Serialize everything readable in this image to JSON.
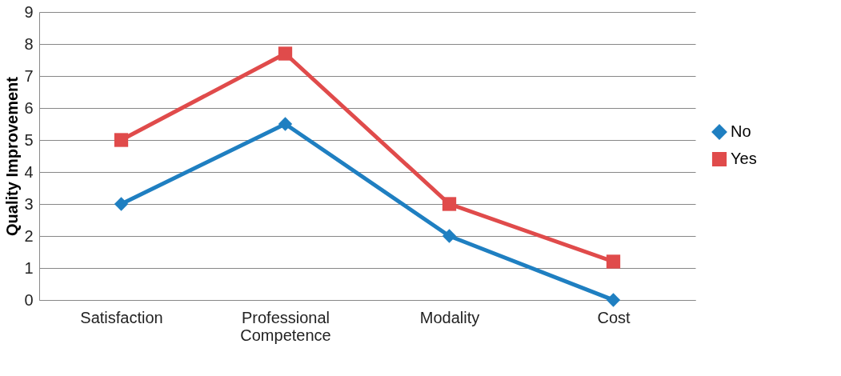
{
  "chart_data": {
    "type": "line",
    "ylabel": "Quality Improvement",
    "categories": [
      "Satisfaction",
      "Professional Competence",
      "Modality",
      "Cost"
    ],
    "series": [
      {
        "name": "No",
        "color": "#1f7fc1",
        "marker": "diamond",
        "values": [
          3,
          5.5,
          2,
          0
        ]
      },
      {
        "name": "Yes",
        "color": "#e04b4b",
        "marker": "square",
        "values": [
          5,
          7.7,
          3,
          1.2
        ]
      }
    ],
    "ylim": [
      0,
      9
    ],
    "yticks": [
      0,
      1,
      2,
      3,
      4,
      5,
      6,
      7,
      8,
      9
    ],
    "grid": "y",
    "legend": "right"
  }
}
